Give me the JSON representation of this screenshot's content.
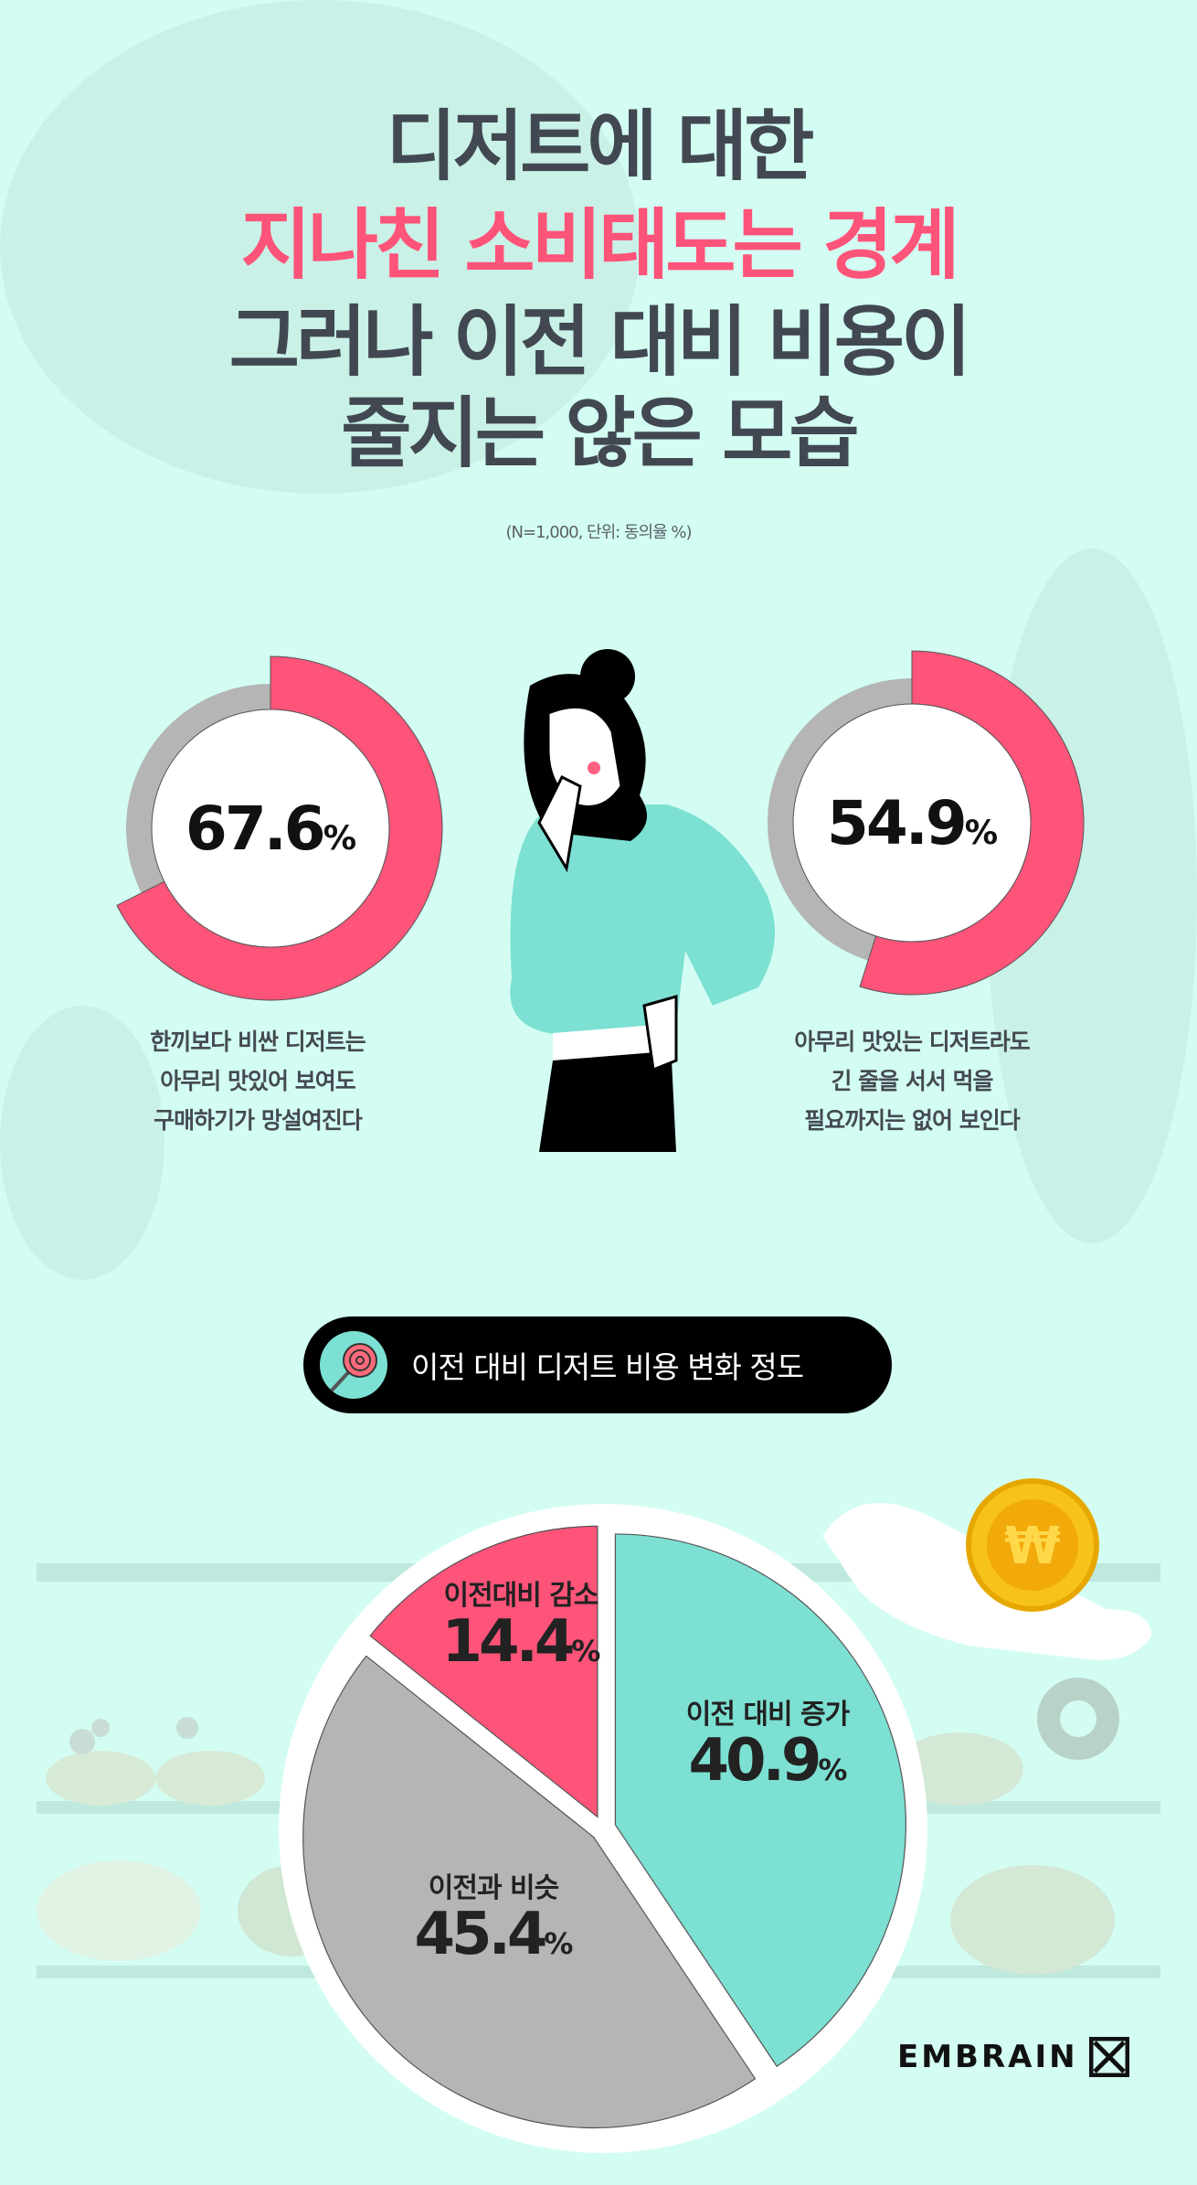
{
  "title": {
    "line1": "디저트에 대한",
    "line2": "지나친 소비태도는 경계",
    "line3": "그러나 이전 대비 비용이",
    "line4": "줄지는 않은 모습"
  },
  "subtitle": "(N=1,000, 단위: 동의율 %)",
  "colors": {
    "background": "#d3fdf3",
    "pink": "#fe5479",
    "grey": "#b5b5b5",
    "teal": "#7ce0d2",
    "title": "#424852"
  },
  "donuts": [
    {
      "value": 67.6,
      "value_label": "67.6",
      "unit": "%",
      "caption": [
        "한끼보다 비싼 디저트는",
        "아무리 맛있어 보여도",
        "구매하기가 망설여진다"
      ]
    },
    {
      "value": 54.9,
      "value_label": "54.9",
      "unit": "%",
      "caption": [
        "아무리 맛있는 디저트라도",
        "긴 줄을 서서 먹을",
        "필요까지는 없어 보인다"
      ]
    }
  ],
  "banner": {
    "icon": "lollipop-icon",
    "label": "이전 대비 디저트 비용 변화 정도"
  },
  "chart_data": {
    "type": "pie",
    "title": "이전 대비 디저트 비용 변화 정도",
    "unit": "%",
    "slices": [
      {
        "label": "이전 대비 증가",
        "value": 40.9,
        "value_label": "40.9",
        "color": "#7ce0d2"
      },
      {
        "label": "이전과 비슷",
        "value": 45.4,
        "value_label": "45.4",
        "color": "#b5b5b5"
      },
      {
        "label": "이전대비 감소",
        "value": 14.4,
        "value_label": "14.4",
        "color": "#fe5479"
      }
    ]
  },
  "logo": {
    "text": "EMBRAIN"
  }
}
